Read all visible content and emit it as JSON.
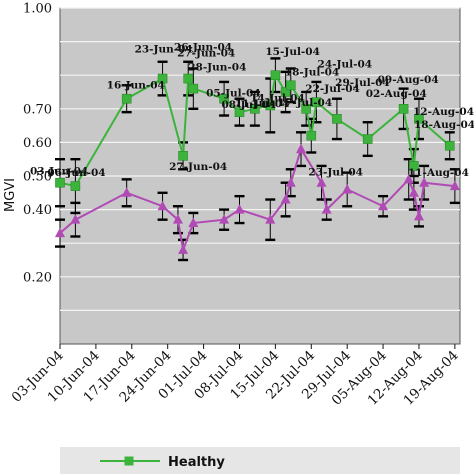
{
  "chart_data": {
    "type": "line",
    "ylabel": "MGVI",
    "ylim": [
      0.0,
      1.0
    ],
    "y_ticks": [
      "",
      "0.20",
      "",
      "0.40",
      "0.50",
      "0.60",
      "0.70",
      "",
      "",
      "1.00"
    ],
    "x_ticks": [
      "03-Jun-04",
      "10-Jun-04",
      "17-Jun-04",
      "24-Jun-04",
      "01-Jul-04",
      "08-Jul-04",
      "15-Jul-04",
      "22-Jul-04",
      "29-Jul-04",
      "05-Aug-04",
      "12-Aug-04",
      "19-Aug-04"
    ],
    "grid": true,
    "legend": "bottom",
    "colors": {
      "plot_bg": "#c8c8c8",
      "healthy": "#3cb43c",
      "second": "#b04ab4",
      "error": "#000000"
    },
    "series": [
      {
        "name": "Healthy",
        "points": [
          [
            "2004-06-03",
            0.48,
            0.07
          ],
          [
            "2004-06-06",
            0.47,
            0.08
          ],
          [
            "2004-06-16",
            0.73,
            0.04
          ],
          [
            "2004-06-23",
            0.79,
            0.05
          ],
          [
            "2004-06-27",
            0.56,
            0.04
          ],
          [
            "2004-06-28",
            0.79,
            0.05
          ],
          [
            "2004-06-29",
            0.76,
            0.06
          ],
          [
            "2004-07-05",
            0.73,
            0.05
          ],
          [
            "2004-07-08",
            0.69,
            0.04
          ],
          [
            "2004-07-11",
            0.7,
            0.05
          ],
          [
            "2004-07-14",
            0.71,
            0.08
          ],
          [
            "2004-07-15",
            0.8,
            0.05
          ],
          [
            "2004-07-17",
            0.75,
            0.06
          ],
          [
            "2004-07-18",
            0.77,
            0.05
          ],
          [
            "2004-07-21",
            0.7,
            0.05
          ],
          [
            "2004-07-22",
            0.62,
            0.05
          ],
          [
            "2004-07-23",
            0.72,
            0.06
          ],
          [
            "2004-07-27",
            0.67,
            0.06
          ],
          [
            "2004-08-02",
            0.61,
            0.05
          ],
          [
            "2004-08-09",
            0.7,
            0.06
          ],
          [
            "2004-08-11",
            0.53,
            0.05
          ],
          [
            "2004-08-12",
            0.67,
            0.06
          ],
          [
            "2004-08-18",
            0.59,
            0.04
          ]
        ]
      },
      {
        "points": [
          [
            "2004-06-03",
            0.33,
            0.04
          ],
          [
            "2004-06-06",
            0.37,
            0.05
          ],
          [
            "2004-06-16",
            0.45,
            0.04
          ],
          [
            "2004-06-23",
            0.41,
            0.04
          ],
          [
            "2004-06-26",
            0.37,
            0.04
          ],
          [
            "2004-06-27",
            0.28,
            0.03
          ],
          [
            "2004-06-29",
            0.36,
            0.03
          ],
          [
            "2004-07-05",
            0.37,
            0.03
          ],
          [
            "2004-07-08",
            0.4,
            0.04
          ],
          [
            "2004-07-14",
            0.37,
            0.06
          ],
          [
            "2004-07-17",
            0.43,
            0.05
          ],
          [
            "2004-07-18",
            0.48,
            0.04
          ],
          [
            "2004-07-20",
            0.58,
            0.05
          ],
          [
            "2004-07-24",
            0.48,
            0.05
          ],
          [
            "2004-07-25",
            0.4,
            0.03
          ],
          [
            "2004-07-29",
            0.46,
            0.05
          ],
          [
            "2004-08-05",
            0.41,
            0.03
          ],
          [
            "2004-08-10",
            0.49,
            0.06
          ],
          [
            "2004-08-11",
            0.45,
            0.05
          ],
          [
            "2004-08-12",
            0.38,
            0.03
          ],
          [
            "2004-08-13",
            0.48,
            0.05
          ],
          [
            "2004-08-19",
            0.47,
            0.05
          ]
        ]
      }
    ],
    "annotations": [
      {
        "text": "03-Jun-04",
        "date": "2004-06-03",
        "value": 0.48
      },
      {
        "text": "06-Jun-04",
        "date": "2004-06-06",
        "value": 0.47
      },
      {
        "text": "16-Jun-04",
        "date": "2004-06-16",
        "value": 0.73
      },
      {
        "text": "23-Jun-04",
        "date": "2004-06-23",
        "value": 0.79
      },
      {
        "text": "26-Jun-04",
        "date": "2004-06-26",
        "value": 0.79
      },
      {
        "text": "27-Jun-04",
        "date": "2004-06-27",
        "value": 0.79
      },
      {
        "text": "28-Jun-04",
        "date": "2004-06-28",
        "value": 0.79
      },
      {
        "text": "27-Jun-04",
        "date": "2004-06-27",
        "value": 0.56
      },
      {
        "text": "05-Jul-04",
        "date": "2004-07-05",
        "value": 0.73
      },
      {
        "text": "08-Jul-04",
        "date": "2004-07-08",
        "value": 0.69
      },
      {
        "text": "11-Jul-04",
        "date": "2004-07-11",
        "value": 0.7
      },
      {
        "text": "14-Jul-04",
        "date": "2004-07-14",
        "value": 0.71
      },
      {
        "text": "15-Jul-04",
        "date": "2004-07-15",
        "value": 0.8
      },
      {
        "text": "18-Jul-04",
        "date": "2004-07-18",
        "value": 0.77
      },
      {
        "text": "24-Jul-04",
        "date": "2004-07-24",
        "value": 0.77
      },
      {
        "text": "17-Jul-04",
        "date": "2004-07-17",
        "value": 0.75
      },
      {
        "text": "22-Jul-04",
        "date": "2004-07-22",
        "value": 0.72
      },
      {
        "text": "29-Jul-04",
        "date": "2004-07-29",
        "value": 0.72
      },
      {
        "text": "23-Jul-04",
        "date": "2004-07-23",
        "value": 0.62
      },
      {
        "text": "02-Aug-04",
        "date": "2004-08-02",
        "value": 0.67
      },
      {
        "text": "09-Aug-04",
        "date": "2004-08-09",
        "value": 0.7
      },
      {
        "text": "12-Aug-04",
        "date": "2004-08-12",
        "value": 0.67
      },
      {
        "text": "11-Aug-04",
        "date": "2004-08-11",
        "value": 0.53
      },
      {
        "text": "18-Aug-04",
        "date": "2004-08-18",
        "value": 0.59
      }
    ]
  }
}
